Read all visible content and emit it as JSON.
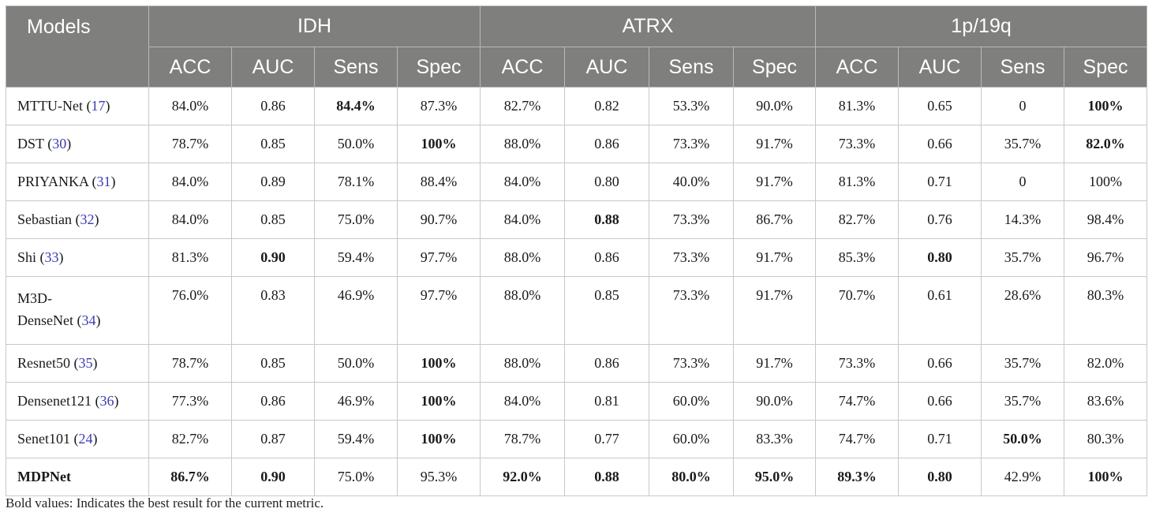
{
  "header": {
    "models": "Models",
    "groups": [
      "IDH",
      "ATRX",
      "1p/19q"
    ],
    "metrics": [
      "ACC",
      "AUC",
      "Sens",
      "Spec"
    ]
  },
  "rows": [
    {
      "model": "MTTU-Net",
      "ref": "17",
      "values": [
        "84.0%",
        "0.86",
        "84.4%",
        "87.3%",
        "82.7%",
        "0.82",
        "53.3%",
        "90.0%",
        "81.3%",
        "0.65",
        "0",
        "100%"
      ],
      "bold": [
        2,
        11
      ]
    },
    {
      "model": "DST",
      "ref": "30",
      "values": [
        "78.7%",
        "0.85",
        "50.0%",
        "100%",
        "88.0%",
        "0.86",
        "73.3%",
        "91.7%",
        "73.3%",
        "0.66",
        "35.7%",
        "82.0%"
      ],
      "bold": [
        3,
        11
      ]
    },
    {
      "model": "PRIYANKA",
      "ref": "31",
      "values": [
        "84.0%",
        "0.89",
        "78.1%",
        "88.4%",
        "84.0%",
        "0.80",
        "40.0%",
        "91.7%",
        "81.3%",
        "0.71",
        "0",
        "100%"
      ],
      "bold": []
    },
    {
      "model": "Sebastian",
      "ref": "32",
      "values": [
        "84.0%",
        "0.85",
        "75.0%",
        "90.7%",
        "84.0%",
        "0.88",
        "73.3%",
        "86.7%",
        "82.7%",
        "0.76",
        "14.3%",
        "98.4%"
      ],
      "bold": [
        5
      ]
    },
    {
      "model": "Shi",
      "ref": "33",
      "values": [
        "81.3%",
        "0.90",
        "59.4%",
        "97.7%",
        "88.0%",
        "0.86",
        "73.3%",
        "91.7%",
        "85.3%",
        "0.80",
        "35.7%",
        "96.7%"
      ],
      "bold": [
        1,
        9
      ]
    },
    {
      "model": "M3D-DenseNet",
      "model_line1": "M3D-",
      "model_line2": "DenseNet",
      "ref": "34",
      "values": [
        "76.0%",
        "0.83",
        "46.9%",
        "97.7%",
        "88.0%",
        "0.85",
        "73.3%",
        "91.7%",
        "70.7%",
        "0.61",
        "28.6%",
        "80.3%"
      ],
      "bold": []
    },
    {
      "model": "Resnet50",
      "ref": "35",
      "values": [
        "78.7%",
        "0.85",
        "50.0%",
        "100%",
        "88.0%",
        "0.86",
        "73.3%",
        "91.7%",
        "73.3%",
        "0.66",
        "35.7%",
        "82.0%"
      ],
      "bold": [
        3
      ]
    },
    {
      "model": "Densenet121",
      "ref": "36",
      "values": [
        "77.3%",
        "0.86",
        "46.9%",
        "100%",
        "84.0%",
        "0.81",
        "60.0%",
        "90.0%",
        "74.7%",
        "0.66",
        "35.7%",
        "83.6%"
      ],
      "bold": [
        3
      ]
    },
    {
      "model": "Senet101",
      "ref": "24",
      "values": [
        "82.7%",
        "0.87",
        "59.4%",
        "100%",
        "78.7%",
        "0.77",
        "60.0%",
        "83.3%",
        "74.7%",
        "0.71",
        "50.0%",
        "80.3%"
      ],
      "bold": [
        3,
        10
      ]
    },
    {
      "model": "MDPNet",
      "ref": "",
      "values": [
        "86.7%",
        "0.90",
        "75.0%",
        "95.3%",
        "92.0%",
        "0.88",
        "80.0%",
        "95.0%",
        "89.3%",
        "0.80",
        "42.9%",
        "100%"
      ],
      "bold": [
        0,
        1,
        4,
        5,
        6,
        7,
        8,
        9,
        11
      ],
      "model_bold": true
    }
  ],
  "note": "Bold values: Indicates the best result for the current metric."
}
